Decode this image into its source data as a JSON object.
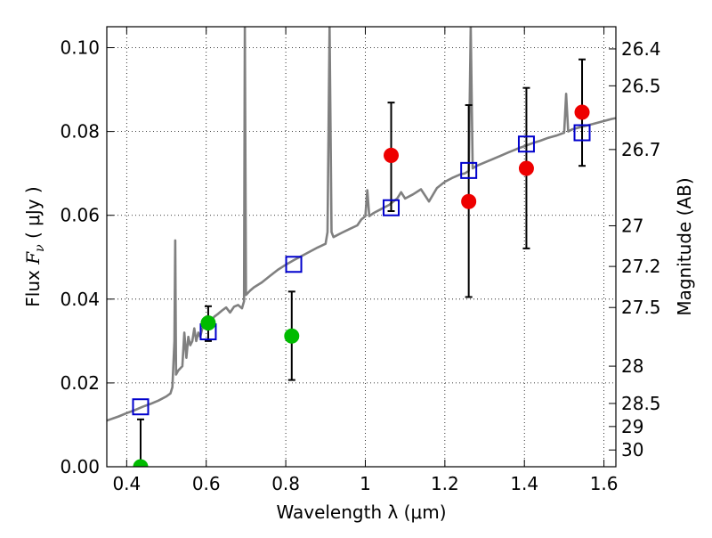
{
  "chart_data": {
    "type": "scatter",
    "xlabel": "Wavelength  λ (μm)",
    "ylabel": "Flux  F_ν  ( μJy )",
    "ylabel_parts": [
      "Flux  ",
      "F",
      "ν",
      "  ( μJy )"
    ],
    "y2label": "Magnitude (AB)",
    "xlim": [
      0.35,
      1.63
    ],
    "ylim": [
      0.0,
      0.105
    ],
    "grid": true,
    "x_ticks": [
      0.4,
      0.6,
      0.8,
      1.0,
      1.2,
      1.4,
      1.6
    ],
    "x_tick_labels": [
      "0.4",
      "0.6",
      "0.8",
      "1",
      "1.2",
      "1.4",
      "1.6"
    ],
    "y_ticks": [
      0.0,
      0.02,
      0.04,
      0.06,
      0.08,
      0.1
    ],
    "y_tick_labels": [
      "0.00",
      "0.02",
      "0.04",
      "0.06",
      "0.08",
      "0.10"
    ],
    "y2_ticks": [
      {
        "flux": 0.0997,
        "label": "26.4"
      },
      {
        "flux": 0.0909,
        "label": "26.5"
      },
      {
        "flux": 0.0757,
        "label": "26.7"
      },
      {
        "flux": 0.0575,
        "label": "27"
      },
      {
        "flux": 0.0478,
        "label": "27.2"
      },
      {
        "flux": 0.038,
        "label": "27.5"
      },
      {
        "flux": 0.024,
        "label": "28"
      },
      {
        "flux": 0.0151,
        "label": "28.5"
      },
      {
        "flux": 0.0096,
        "label": "29"
      },
      {
        "flux": 0.004,
        "label": "30"
      }
    ],
    "colors": {
      "spectrum": "#808080",
      "model_marker": "#0000cc",
      "green_marker": "#00bb00",
      "red_marker": "#ee0000",
      "error_bar": "#000000"
    },
    "series": [
      {
        "type": "line",
        "x": [
          0.35,
          0.38,
          0.4,
          0.42,
          0.44,
          0.46,
          0.48,
          0.5,
          0.51,
          0.515,
          0.52,
          0.522,
          0.524,
          0.53,
          0.54,
          0.545,
          0.55,
          0.555,
          0.56,
          0.565,
          0.57,
          0.575,
          0.58,
          0.585,
          0.59,
          0.6,
          0.61,
          0.62,
          0.63,
          0.64,
          0.65,
          0.66,
          0.67,
          0.68,
          0.69,
          0.695,
          0.697,
          0.7,
          0.71,
          0.72,
          0.74,
          0.76,
          0.78,
          0.8,
          0.82,
          0.84,
          0.86,
          0.88,
          0.9,
          0.905,
          0.91,
          0.915,
          0.92,
          0.94,
          0.96,
          0.98,
          0.99,
          1.0,
          1.005,
          1.01,
          1.02,
          1.04,
          1.06,
          1.08,
          1.09,
          1.1,
          1.12,
          1.14,
          1.16,
          1.18,
          1.2,
          1.22,
          1.24,
          1.25,
          1.26,
          1.265,
          1.27,
          1.28,
          1.3,
          1.32,
          1.34,
          1.36,
          1.38,
          1.4,
          1.42,
          1.44,
          1.46,
          1.48,
          1.5,
          1.505,
          1.51,
          1.52,
          1.54,
          1.56,
          1.58,
          1.6,
          1.62,
          1.63
        ],
        "values": [
          0.011,
          0.012,
          0.0128,
          0.0135,
          0.0143,
          0.015,
          0.0158,
          0.0168,
          0.0175,
          0.019,
          0.03,
          0.054,
          0.022,
          0.023,
          0.024,
          0.032,
          0.026,
          0.031,
          0.029,
          0.03,
          0.033,
          0.03,
          0.032,
          0.031,
          0.033,
          0.0335,
          0.0342,
          0.0358,
          0.0365,
          0.0373,
          0.038,
          0.0368,
          0.0382,
          0.0386,
          0.0378,
          0.0395,
          0.105,
          0.041,
          0.042,
          0.0428,
          0.044,
          0.0455,
          0.047,
          0.0482,
          0.0493,
          0.0503,
          0.0513,
          0.0523,
          0.0532,
          0.056,
          0.105,
          0.056,
          0.0548,
          0.0558,
          0.0567,
          0.0576,
          0.059,
          0.0598,
          0.066,
          0.0598,
          0.0605,
          0.0615,
          0.0625,
          0.064,
          0.0655,
          0.064,
          0.065,
          0.0662,
          0.0633,
          0.0665,
          0.068,
          0.069,
          0.0698,
          0.07,
          0.0706,
          0.105,
          0.0712,
          0.0718,
          0.0726,
          0.0734,
          0.0742,
          0.075,
          0.0758,
          0.0765,
          0.0772,
          0.0778,
          0.0785,
          0.079,
          0.0797,
          0.089,
          0.08,
          0.0805,
          0.081,
          0.0815,
          0.082,
          0.0825,
          0.083,
          0.0832
        ]
      },
      {
        "type": "scatter",
        "marker": "open-square",
        "x": [
          0.435,
          0.605,
          0.82,
          1.065,
          1.26,
          1.405,
          1.545
        ],
        "values": [
          0.0143,
          0.0322,
          0.0483,
          0.0618,
          0.0707,
          0.077,
          0.0797
        ]
      },
      {
        "type": "scatter",
        "marker": "filled-circle",
        "x": [
          0.435,
          0.605,
          0.815
        ],
        "values": [
          0.0,
          0.0343,
          0.0312
        ],
        "yerr_low": [
          0.0,
          0.0043,
          0.0105
        ],
        "yerr_high": [
          0.0113,
          0.004,
          0.0106
        ]
      },
      {
        "type": "scatter",
        "marker": "filled-circle",
        "x": [
          1.065,
          1.26,
          1.405,
          1.545
        ],
        "values": [
          0.0743,
          0.0633,
          0.0712,
          0.0846
        ],
        "yerr_low": [
          0.0133,
          0.0228,
          0.0191,
          0.0128
        ],
        "yerr_high": [
          0.0126,
          0.023,
          0.0192,
          0.0126
        ]
      }
    ]
  }
}
